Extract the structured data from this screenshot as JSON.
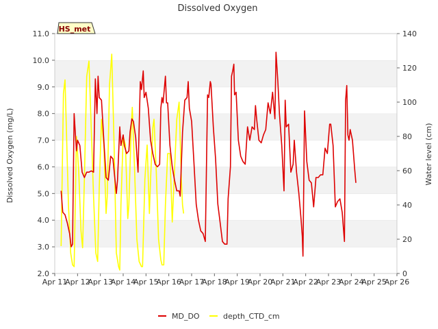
{
  "chart_data": {
    "type": "line",
    "title": "Dissolved Oxygen",
    "ylabel": "Dissolved Oxygen (mg/L)",
    "y2label": "Water level (cm)",
    "xlabel": "",
    "site_badge": "HS_met",
    "x_ticks": [
      "Apr 11",
      "Apr 12",
      "Apr 13",
      "Apr 14",
      "Apr 15",
      "Apr 16",
      "Apr 17",
      "Apr 18",
      "Apr 19",
      "Apr 20",
      "Apr 21",
      "Apr 22",
      "Apr 23",
      "Apr 24",
      "Apr 25",
      "Apr 26"
    ],
    "xlim": [
      11,
      26
    ],
    "ylim": [
      2.0,
      11.0
    ],
    "y_ticks": [
      "2.0",
      "3.0",
      "4.0",
      "5.0",
      "6.0",
      "7.0",
      "8.0",
      "9.0",
      "10.0",
      "11.0"
    ],
    "y2lim": [
      0,
      140
    ],
    "y2_ticks": [
      "0",
      "20",
      "40",
      "60",
      "80",
      "100",
      "120",
      "140"
    ],
    "grid": "horizontal bands",
    "legend_position": "bottom-center",
    "series": [
      {
        "name": "MD_DO",
        "axis": "left",
        "color": "#dd0000",
        "points": [
          [
            11.28,
            5.1
          ],
          [
            11.35,
            4.3
          ],
          [
            11.45,
            4.2
          ],
          [
            11.55,
            3.9
          ],
          [
            11.65,
            3.5
          ],
          [
            11.72,
            3.0
          ],
          [
            11.78,
            3.1
          ],
          [
            11.85,
            8.0
          ],
          [
            11.95,
            6.6
          ],
          [
            12.0,
            7.0
          ],
          [
            12.1,
            6.8
          ],
          [
            12.2,
            5.8
          ],
          [
            12.3,
            5.6
          ],
          [
            12.4,
            5.8
          ],
          [
            12.5,
            5.8
          ],
          [
            12.6,
            5.85
          ],
          [
            12.7,
            5.8
          ],
          [
            12.78,
            9.3
          ],
          [
            12.85,
            8.0
          ],
          [
            12.9,
            9.4
          ],
          [
            12.95,
            8.6
          ],
          [
            13.05,
            8.5
          ],
          [
            13.15,
            7.0
          ],
          [
            13.25,
            5.6
          ],
          [
            13.35,
            5.5
          ],
          [
            13.45,
            6.4
          ],
          [
            13.55,
            6.3
          ],
          [
            13.7,
            5.0
          ],
          [
            13.75,
            5.5
          ],
          [
            13.85,
            7.5
          ],
          [
            13.9,
            6.8
          ],
          [
            14.0,
            7.2
          ],
          [
            14.05,
            6.8
          ],
          [
            14.15,
            6.5
          ],
          [
            14.25,
            6.6
          ],
          [
            14.3,
            7.3
          ],
          [
            14.38,
            7.8
          ],
          [
            14.45,
            7.7
          ],
          [
            14.55,
            7.1
          ],
          [
            14.65,
            5.8
          ],
          [
            14.75,
            9.2
          ],
          [
            14.8,
            8.9
          ],
          [
            14.88,
            9.6
          ],
          [
            14.92,
            8.6
          ],
          [
            15.0,
            8.8
          ],
          [
            15.1,
            8.2
          ],
          [
            15.2,
            7.0
          ],
          [
            15.3,
            6.5
          ],
          [
            15.4,
            6.1
          ],
          [
            15.5,
            6.0
          ],
          [
            15.6,
            6.1
          ],
          [
            15.65,
            8.2
          ],
          [
            15.7,
            8.6
          ],
          [
            15.75,
            8.4
          ],
          [
            15.85,
            9.4
          ],
          [
            15.9,
            8.4
          ],
          [
            15.95,
            8.4
          ],
          [
            16.05,
            6.8
          ],
          [
            16.15,
            6.0
          ],
          [
            16.25,
            5.5
          ],
          [
            16.35,
            5.1
          ],
          [
            16.45,
            5.1
          ],
          [
            16.5,
            4.9
          ],
          [
            16.6,
            7.3
          ],
          [
            16.7,
            8.5
          ],
          [
            16.8,
            8.6
          ],
          [
            16.85,
            9.2
          ],
          [
            16.9,
            8.2
          ],
          [
            17.0,
            7.7
          ],
          [
            17.1,
            6.2
          ],
          [
            17.2,
            4.6
          ],
          [
            17.3,
            4.0
          ],
          [
            17.4,
            3.6
          ],
          [
            17.5,
            3.5
          ],
          [
            17.6,
            3.2
          ],
          [
            17.7,
            8.7
          ],
          [
            17.75,
            8.6
          ],
          [
            17.82,
            9.2
          ],
          [
            17.85,
            9.1
          ],
          [
            17.95,
            7.5
          ],
          [
            18.05,
            6.3
          ],
          [
            18.15,
            4.6
          ],
          [
            18.25,
            3.9
          ],
          [
            18.35,
            3.2
          ],
          [
            18.45,
            3.1
          ],
          [
            18.55,
            3.1
          ],
          [
            18.6,
            4.8
          ],
          [
            18.7,
            6.0
          ],
          [
            18.75,
            9.4
          ],
          [
            18.8,
            9.6
          ],
          [
            18.85,
            9.85
          ],
          [
            18.88,
            8.7
          ],
          [
            18.95,
            8.8
          ],
          [
            19.05,
            7.0
          ],
          [
            19.15,
            6.4
          ],
          [
            19.25,
            6.2
          ],
          [
            19.35,
            6.1
          ],
          [
            19.45,
            7.5
          ],
          [
            19.55,
            7.0
          ],
          [
            19.65,
            7.5
          ],
          [
            19.75,
            7.4
          ],
          [
            19.8,
            8.3
          ],
          [
            19.85,
            7.8
          ],
          [
            19.95,
            7.0
          ],
          [
            20.05,
            6.9
          ],
          [
            20.15,
            7.2
          ],
          [
            20.25,
            7.4
          ],
          [
            20.35,
            8.4
          ],
          [
            20.45,
            8.0
          ],
          [
            20.55,
            8.8
          ],
          [
            20.65,
            7.8
          ],
          [
            20.7,
            10.3
          ],
          [
            20.78,
            9.2
          ],
          [
            20.85,
            8.0
          ],
          [
            20.95,
            6.8
          ],
          [
            21.05,
            5.1
          ],
          [
            21.1,
            8.5
          ],
          [
            21.15,
            7.5
          ],
          [
            21.25,
            7.6
          ],
          [
            21.35,
            5.8
          ],
          [
            21.45,
            6.1
          ],
          [
            21.5,
            7.0
          ],
          [
            21.6,
            5.8
          ],
          [
            21.7,
            5.0
          ],
          [
            21.8,
            4.0
          ],
          [
            21.85,
            3.4
          ],
          [
            21.88,
            2.65
          ],
          [
            21.95,
            8.1
          ],
          [
            22.05,
            6.2
          ],
          [
            22.15,
            5.5
          ],
          [
            22.25,
            5.4
          ],
          [
            22.35,
            4.5
          ],
          [
            22.45,
            5.6
          ],
          [
            22.55,
            5.6
          ],
          [
            22.65,
            5.7
          ],
          [
            22.75,
            5.7
          ],
          [
            22.85,
            6.7
          ],
          [
            22.95,
            6.5
          ],
          [
            23.05,
            7.6
          ],
          [
            23.1,
            7.6
          ],
          [
            23.2,
            6.8
          ],
          [
            23.3,
            4.5
          ],
          [
            23.4,
            4.7
          ],
          [
            23.5,
            4.8
          ],
          [
            23.6,
            4.3
          ],
          [
            23.7,
            3.2
          ],
          [
            23.75,
            8.5
          ],
          [
            23.8,
            9.05
          ],
          [
            23.85,
            7.2
          ],
          [
            23.9,
            7.0
          ],
          [
            23.95,
            7.4
          ],
          [
            24.05,
            7.0
          ],
          [
            24.15,
            5.9
          ],
          [
            24.2,
            5.4
          ]
        ]
      },
      {
        "name": "depth_CTD_cm",
        "axis": "right",
        "color": "#ffff00",
        "points": [
          [
            11.28,
            16
          ],
          [
            11.33,
            60
          ],
          [
            11.38,
            105
          ],
          [
            11.45,
            113
          ],
          [
            11.52,
            80
          ],
          [
            11.6,
            40
          ],
          [
            11.7,
            12
          ],
          [
            11.78,
            5
          ],
          [
            11.85,
            4
          ],
          [
            11.9,
            40
          ],
          [
            11.95,
            80
          ],
          [
            12.05,
            60
          ],
          [
            12.15,
            25
          ],
          [
            12.22,
            15
          ],
          [
            12.3,
            55
          ],
          [
            12.4,
            115
          ],
          [
            12.5,
            124
          ],
          [
            12.6,
            85
          ],
          [
            12.7,
            45
          ],
          [
            12.8,
            12
          ],
          [
            12.88,
            7
          ],
          [
            12.95,
            50
          ],
          [
            13.05,
            90
          ],
          [
            13.15,
            75
          ],
          [
            13.25,
            35
          ],
          [
            13.3,
            45
          ],
          [
            13.4,
            110
          ],
          [
            13.5,
            128
          ],
          [
            13.6,
            75
          ],
          [
            13.7,
            12
          ],
          [
            13.8,
            4
          ],
          [
            13.85,
            2
          ],
          [
            13.9,
            40
          ],
          [
            14.0,
            80
          ],
          [
            14.1,
            75
          ],
          [
            14.2,
            32
          ],
          [
            14.25,
            40
          ],
          [
            14.35,
            85
          ],
          [
            14.4,
            97
          ],
          [
            14.5,
            60
          ],
          [
            14.6,
            20
          ],
          [
            14.7,
            7
          ],
          [
            14.8,
            4
          ],
          [
            14.85,
            4
          ],
          [
            14.95,
            55
          ],
          [
            15.05,
            75
          ],
          [
            15.15,
            35
          ],
          [
            15.2,
            55
          ],
          [
            15.3,
            85
          ],
          [
            15.35,
            90
          ],
          [
            15.45,
            60
          ],
          [
            15.55,
            20
          ],
          [
            15.65,
            8
          ],
          [
            15.7,
            5
          ],
          [
            15.78,
            5
          ],
          [
            15.85,
            40
          ],
          [
            15.95,
            70
          ],
          [
            16.05,
            70
          ],
          [
            16.15,
            30
          ],
          [
            16.25,
            60
          ],
          [
            16.35,
            90
          ],
          [
            16.45,
            100
          ],
          [
            16.55,
            55
          ],
          [
            16.6,
            40
          ],
          [
            16.65,
            35
          ]
        ]
      }
    ]
  }
}
